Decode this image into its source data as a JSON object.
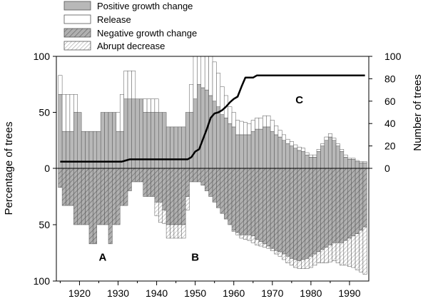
{
  "chart_data": {
    "type": "bar",
    "title": "",
    "x_range": [
      1914,
      1995
    ],
    "x_ticks": [
      1920,
      1930,
      1940,
      1950,
      1960,
      1970,
      1980,
      1990
    ],
    "left_axis": {
      "label": "Percentage of trees",
      "ticks": [
        100,
        50,
        0,
        50,
        100
      ],
      "range_up": 100,
      "range_down": 100
    },
    "right_axis": {
      "label": "Number of trees",
      "ticks": [
        0,
        20,
        40,
        60,
        80,
        100
      ],
      "range": [
        0,
        100
      ]
    },
    "legend": [
      {
        "key": "positive",
        "label": "Positive growth change"
      },
      {
        "key": "release",
        "label": "Release"
      },
      {
        "key": "negative",
        "label": "Negative growth change"
      },
      {
        "key": "abrupt",
        "label": "Abrupt decrease"
      }
    ],
    "zones": [
      {
        "label": "A",
        "x": 1926,
        "y": -82
      },
      {
        "label": "B",
        "x": 1950,
        "y": -82
      },
      {
        "label": "C",
        "x": 1977,
        "y": 58
      }
    ],
    "years": [
      1915,
      1916,
      1917,
      1918,
      1919,
      1920,
      1921,
      1922,
      1923,
      1924,
      1925,
      1926,
      1927,
      1928,
      1929,
      1930,
      1931,
      1932,
      1933,
      1934,
      1935,
      1936,
      1937,
      1938,
      1939,
      1940,
      1941,
      1942,
      1943,
      1944,
      1945,
      1946,
      1947,
      1948,
      1949,
      1950,
      1951,
      1952,
      1953,
      1954,
      1955,
      1956,
      1957,
      1958,
      1959,
      1960,
      1961,
      1962,
      1963,
      1964,
      1965,
      1966,
      1967,
      1968,
      1969,
      1970,
      1971,
      1972,
      1973,
      1974,
      1975,
      1976,
      1977,
      1978,
      1979,
      1980,
      1981,
      1982,
      1983,
      1984,
      1985,
      1986,
      1987,
      1988,
      1989,
      1990,
      1991,
      1992,
      1993,
      1994
    ],
    "series": [
      {
        "name": "Positive growth change",
        "values": [
          66,
          33,
          33,
          33,
          50,
          50,
          33,
          33,
          33,
          33,
          33,
          50,
          50,
          50,
          50,
          33,
          33,
          62,
          62,
          62,
          62,
          62,
          50,
          50,
          50,
          50,
          50,
          50,
          37,
          37,
          37,
          37,
          37,
          50,
          50,
          62,
          75,
          72,
          70,
          65,
          60,
          55,
          48,
          45,
          40,
          37,
          30,
          30,
          30,
          30,
          33,
          35,
          35,
          37,
          37,
          33,
          30,
          28,
          25,
          22,
          20,
          18,
          16,
          15,
          12,
          10,
          10,
          15,
          20,
          25,
          28,
          25,
          20,
          15,
          10,
          8,
          8,
          6,
          5,
          5
        ]
      },
      {
        "name": "Release",
        "values": [
          17,
          33,
          33,
          33,
          16,
          0,
          0,
          0,
          0,
          0,
          0,
          0,
          0,
          0,
          0,
          17,
          33,
          25,
          25,
          25,
          0,
          0,
          12,
          12,
          12,
          12,
          0,
          0,
          0,
          0,
          0,
          0,
          0,
          0,
          25,
          38,
          25,
          28,
          30,
          35,
          35,
          30,
          25,
          20,
          15,
          13,
          13,
          12,
          11,
          10,
          10,
          10,
          10,
          10,
          10,
          10,
          8,
          6,
          5,
          4,
          4,
          3,
          3,
          3,
          2,
          2,
          2,
          2,
          2,
          3,
          3,
          2,
          2,
          2,
          2,
          1,
          1,
          1,
          1,
          1
        ]
      },
      {
        "name": "Negative growth change",
        "values": [
          17,
          33,
          33,
          33,
          50,
          50,
          50,
          50,
          67,
          67,
          50,
          50,
          50,
          67,
          50,
          50,
          33,
          33,
          20,
          12,
          12,
          12,
          25,
          25,
          25,
          30,
          30,
          37,
          50,
          50,
          50,
          50,
          50,
          25,
          12,
          12,
          12,
          15,
          20,
          25,
          30,
          35,
          40,
          45,
          50,
          55,
          57,
          59,
          59,
          59,
          60,
          63,
          65,
          67,
          69,
          71,
          73,
          74,
          76,
          78,
          80,
          81,
          82,
          81,
          80,
          78,
          76,
          74,
          72,
          70,
          68,
          66,
          66,
          66,
          64,
          62,
          60,
          58,
          55,
          52
        ]
      },
      {
        "name": "Abrupt decrease",
        "values": [
          0,
          0,
          0,
          0,
          0,
          0,
          0,
          0,
          0,
          0,
          0,
          0,
          0,
          0,
          0,
          0,
          0,
          0,
          0,
          0,
          0,
          0,
          0,
          0,
          0,
          12,
          18,
          12,
          12,
          12,
          12,
          12,
          12,
          12,
          0,
          0,
          0,
          0,
          0,
          0,
          0,
          0,
          0,
          0,
          0,
          1,
          2,
          3,
          4,
          5,
          6,
          5,
          4,
          3,
          2,
          2,
          3,
          4,
          5,
          6,
          6,
          7,
          7,
          8,
          9,
          10,
          10,
          10,
          12,
          14,
          15,
          16,
          18,
          20,
          22,
          25,
          28,
          32,
          37,
          42
        ]
      },
      {
        "name": "Number of trees",
        "values": [
          6,
          6,
          6,
          6,
          6,
          6,
          6,
          6,
          6,
          6,
          6,
          6,
          6,
          6,
          6,
          6,
          6,
          7,
          8,
          8,
          8,
          8,
          8,
          8,
          8,
          8,
          8,
          8,
          8,
          8,
          8,
          8,
          8,
          8,
          10,
          15,
          17,
          26,
          35,
          45,
          49,
          50,
          52,
          55,
          59,
          62,
          64,
          73,
          81,
          81,
          81,
          83,
          83,
          83,
          83,
          83,
          83,
          83,
          83,
          83,
          83,
          83,
          83,
          83,
          83,
          83,
          83,
          83,
          83,
          83,
          83,
          83,
          83,
          83,
          83,
          83,
          83,
          83,
          83,
          83
        ]
      }
    ]
  }
}
